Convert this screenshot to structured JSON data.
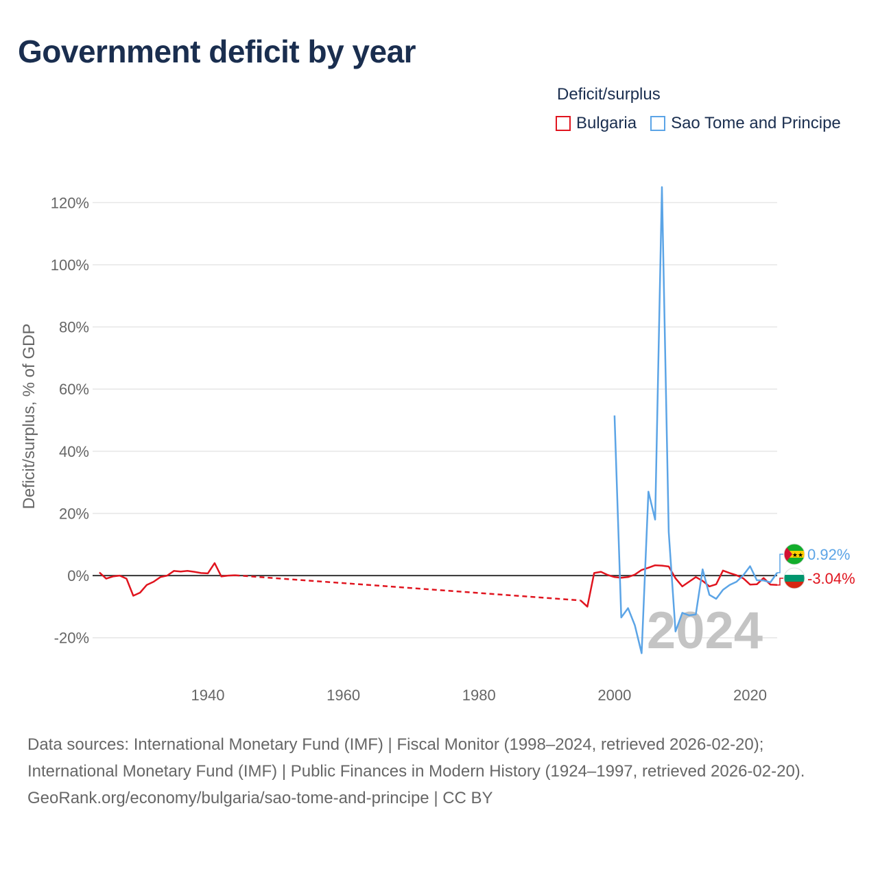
{
  "title": "Government deficit by year",
  "legend": {
    "title": "Deficit/surplus",
    "items": [
      {
        "name": "Bulgaria",
        "color": "#e0141e"
      },
      {
        "name": "Sao Tome and Principe",
        "color": "#5ba4e6"
      }
    ]
  },
  "chart_data": {
    "type": "line",
    "title": "Government deficit by year",
    "xlabel": "",
    "ylabel": "Deficit/surplus, % of GDP",
    "xlim": [
      1923,
      2024
    ],
    "ylim": [
      -30,
      130
    ],
    "x_ticks": [
      1940,
      1960,
      1980,
      2000,
      2020
    ],
    "x_tick_labels": [
      "1940",
      "1960",
      "1980",
      "2000",
      "2020"
    ],
    "y_ticks": [
      -20,
      0,
      20,
      40,
      60,
      80,
      100,
      120
    ],
    "y_tick_labels": [
      "-20%",
      "0%",
      "20%",
      "40%",
      "60%",
      "80%",
      "100%",
      "120%"
    ],
    "year_label": "2024",
    "grid": true,
    "series": [
      {
        "name": "Bulgaria",
        "color": "#e0141e",
        "points": [
          [
            1924,
            1
          ],
          [
            1925,
            -1
          ],
          [
            1926,
            -0.3
          ],
          [
            1927,
            0
          ],
          [
            1928,
            -1
          ],
          [
            1929,
            -6.5
          ],
          [
            1930,
            -5.5
          ],
          [
            1931,
            -3
          ],
          [
            1932,
            -2
          ],
          [
            1933,
            -0.5
          ],
          [
            1934,
            0
          ],
          [
            1935,
            1.5
          ],
          [
            1936,
            1.3
          ],
          [
            1937,
            1.5
          ],
          [
            1938,
            1.2
          ],
          [
            1939,
            0.8
          ],
          [
            1940,
            0.7
          ],
          [
            1941,
            4
          ],
          [
            1942,
            -0.3
          ],
          [
            1943,
            0
          ],
          [
            1944,
            0.1
          ]
        ],
        "gap_points": [
          [
            1944,
            0.1
          ],
          [
            1995,
            -8
          ]
        ],
        "points_late": [
          [
            1995,
            -8
          ],
          [
            1996,
            -10
          ],
          [
            1997,
            0.8
          ],
          [
            1998,
            1.2
          ],
          [
            1999,
            0.2
          ],
          [
            2000,
            -0.5
          ],
          [
            2001,
            -0.7
          ],
          [
            2002,
            -0.5
          ],
          [
            2003,
            0.3
          ],
          [
            2004,
            1.8
          ],
          [
            2005,
            2.5
          ],
          [
            2006,
            3.3
          ],
          [
            2007,
            3.2
          ],
          [
            2008,
            2.9
          ],
          [
            2009,
            -0.9
          ],
          [
            2010,
            -3.5
          ],
          [
            2011,
            -2
          ],
          [
            2012,
            -0.5
          ],
          [
            2013,
            -1.7
          ],
          [
            2014,
            -3.5
          ],
          [
            2015,
            -2.8
          ],
          [
            2016,
            1.6
          ],
          [
            2017,
            0.8
          ],
          [
            2018,
            0.1
          ],
          [
            2019,
            -0.9
          ],
          [
            2020,
            -2.9
          ],
          [
            2021,
            -2.8
          ],
          [
            2022,
            -0.8
          ],
          [
            2023,
            -2.9
          ],
          [
            2024,
            -3.04
          ]
        ],
        "last_value": -3.04,
        "last_label": "-3.04%"
      },
      {
        "name": "Sao Tome and Principe",
        "color": "#5ba4e6",
        "points": [
          [
            2000,
            51.5
          ],
          [
            2001,
            -13.5
          ],
          [
            2002,
            -10.5
          ],
          [
            2003,
            -16
          ],
          [
            2004,
            -25
          ],
          [
            2005,
            27
          ],
          [
            2006,
            18
          ],
          [
            2007,
            125
          ],
          [
            2008,
            14
          ],
          [
            2009,
            -18
          ],
          [
            2010,
            -12
          ],
          [
            2011,
            -12.8
          ],
          [
            2012,
            -12.5
          ],
          [
            2013,
            2
          ],
          [
            2014,
            -6.2
          ],
          [
            2015,
            -7.5
          ],
          [
            2016,
            -4.6
          ],
          [
            2017,
            -3
          ],
          [
            2018,
            -2
          ],
          [
            2019,
            0.1
          ],
          [
            2020,
            3
          ],
          [
            2021,
            -1.5
          ],
          [
            2022,
            -1.6
          ],
          [
            2023,
            -2.2
          ],
          [
            2024,
            0.92
          ]
        ],
        "last_value": 0.92,
        "last_label": "0.92%"
      }
    ]
  },
  "source_lines": [
    "Data sources: International Monetary Fund (IMF) | Fiscal Monitor (1998–2024, retrieved 2026-02-20); International Monetary Fund (IMF) | Public Finances in Modern History (1924–1997, retrieved 2026-02-20).",
    "GeoRank.org/economy/bulgaria/sao-tome-and-principe | CC BY"
  ]
}
